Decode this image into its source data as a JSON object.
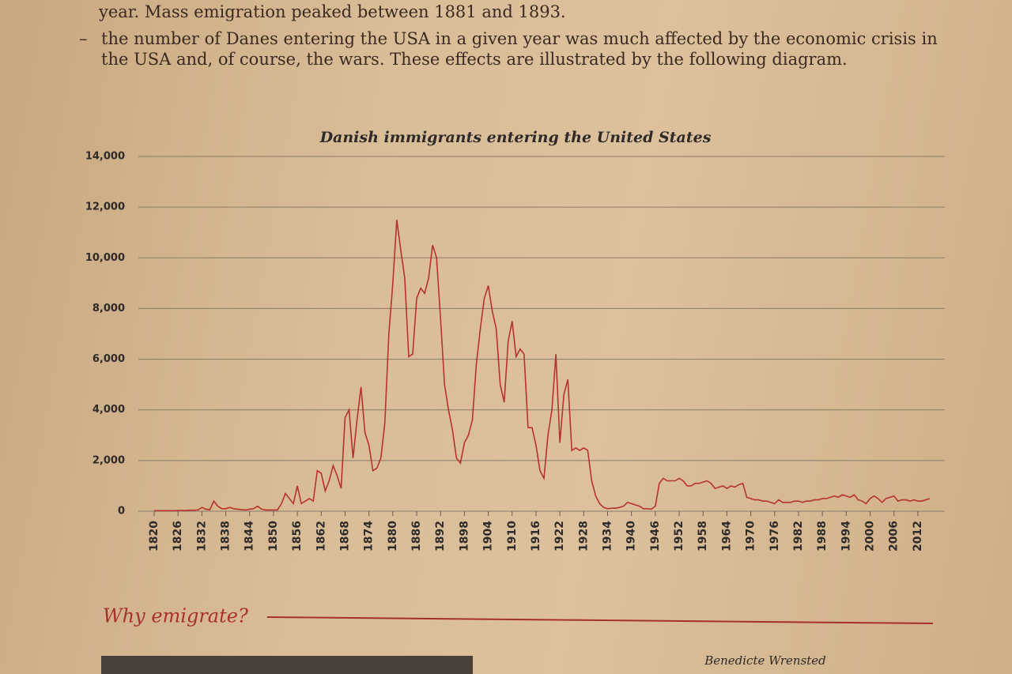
{
  "text": {
    "line1": "year. Mass emigration peaked between 1881 and 1893.",
    "bullet_marker": "–",
    "bullet": "the number of Danes entering the USA in a given year was much affected by the economic crisis in the USA and, of course, the wars. These effects are illustrated by the following diagram."
  },
  "chart_data": {
    "type": "line",
    "title": "Danish immigrants entering the United States",
    "color": "#b8322e",
    "grid": true,
    "x": [
      1820,
      1821,
      1822,
      1823,
      1824,
      1825,
      1826,
      1827,
      1828,
      1829,
      1830,
      1831,
      1832,
      1833,
      1834,
      1835,
      1836,
      1837,
      1838,
      1839,
      1840,
      1841,
      1842,
      1843,
      1844,
      1845,
      1846,
      1847,
      1848,
      1849,
      1850,
      1851,
      1852,
      1853,
      1854,
      1855,
      1856,
      1857,
      1858,
      1859,
      1860,
      1861,
      1862,
      1863,
      1864,
      1865,
      1866,
      1867,
      1868,
      1869,
      1870,
      1871,
      1872,
      1873,
      1874,
      1875,
      1876,
      1877,
      1878,
      1879,
      1880,
      1881,
      1882,
      1883,
      1884,
      1885,
      1886,
      1887,
      1888,
      1889,
      1890,
      1891,
      1892,
      1893,
      1894,
      1895,
      1896,
      1897,
      1898,
      1899,
      1900,
      1901,
      1902,
      1903,
      1904,
      1905,
      1906,
      1907,
      1908,
      1909,
      1910,
      1911,
      1912,
      1913,
      1914,
      1915,
      1916,
      1917,
      1918,
      1919,
      1920,
      1921,
      1922,
      1923,
      1924,
      1925,
      1926,
      1927,
      1928,
      1929,
      1930,
      1931,
      1932,
      1933,
      1934,
      1935,
      1936,
      1937,
      1938,
      1939,
      1940,
      1941,
      1942,
      1943,
      1944,
      1945,
      1946,
      1947,
      1948,
      1949,
      1950,
      1951,
      1952,
      1953,
      1954,
      1955,
      1956,
      1957,
      1958,
      1959,
      1960,
      1961,
      1962,
      1963,
      1964,
      1965,
      1966,
      1967,
      1968,
      1969,
      1970,
      1971,
      1972,
      1973,
      1974,
      1975,
      1976,
      1977,
      1978,
      1979,
      1980,
      1981,
      1982,
      1983,
      1984,
      1985,
      1986,
      1987,
      1988,
      1989,
      1990,
      1991,
      1992,
      1993,
      1994,
      1995,
      1996,
      1997,
      1998,
      1999,
      2000,
      2001,
      2002,
      2003,
      2004,
      2005,
      2006,
      2007,
      2008,
      2009,
      2010,
      2011,
      2012,
      2013,
      2014,
      2015
    ],
    "values": [
      20,
      20,
      20,
      20,
      20,
      20,
      30,
      30,
      30,
      40,
      40,
      50,
      150,
      80,
      60,
      400,
      200,
      100,
      100,
      150,
      100,
      80,
      60,
      50,
      80,
      100,
      200,
      80,
      50,
      50,
      50,
      50,
      300,
      700,
      500,
      300,
      1000,
      300,
      400,
      500,
      400,
      1600,
      1500,
      800,
      1200,
      1800,
      1400,
      900,
      3700,
      4000,
      2100,
      3600,
      4900,
      3100,
      2600,
      1600,
      1700,
      2100,
      3500,
      7000,
      9000,
      11500,
      10300,
      9200,
      6100,
      6200,
      8400,
      8800,
      8600,
      9200,
      10500,
      10000,
      7600,
      5000,
      4000,
      3200,
      2100,
      1900,
      2700,
      3000,
      3600,
      5800,
      7200,
      8400,
      8900,
      7900,
      7200,
      5000,
      4300,
      6700,
      7500,
      6100,
      6400,
      6200,
      3300,
      3300,
      2600,
      1600,
      1300,
      3000,
      4000,
      6200,
      2700,
      4600,
      5200,
      2400,
      2500,
      2400,
      2500,
      2400,
      1200,
      600,
      300,
      150,
      100,
      120,
      120,
      150,
      200,
      350,
      300,
      250,
      200,
      100,
      100,
      80,
      200,
      1100,
      1300,
      1200,
      1200,
      1200,
      1300,
      1200,
      1000,
      1000,
      1100,
      1100,
      1150,
      1200,
      1100,
      900,
      950,
      1000,
      900,
      1000,
      950,
      1050,
      1100,
      550,
      500,
      450,
      450,
      400,
      400,
      350,
      300,
      450,
      350,
      350,
      350,
      400,
      400,
      350,
      400,
      400,
      450,
      450,
      500,
      500,
      550,
      600,
      550,
      650,
      600,
      550,
      650,
      450,
      400,
      300,
      500,
      600,
      500,
      350,
      500,
      550,
      600,
      400,
      450,
      450,
      400,
      450,
      400,
      400,
      450,
      500
    ],
    "xlim": [
      1820,
      2015
    ],
    "xticks": [
      1820,
      1826,
      1832,
      1838,
      1844,
      1850,
      1856,
      1862,
      1868,
      1874,
      1880,
      1886,
      1892,
      1898,
      1904,
      1910,
      1916,
      1922,
      1928,
      1934,
      1940,
      1946,
      1952,
      1958,
      1964,
      1970,
      1976,
      1982,
      1988,
      1994,
      2000,
      2006,
      2012
    ],
    "ylim": [
      0,
      14000
    ],
    "yticks": [
      0,
      {
        "value": 2000,
        "label": "2,000"
      },
      {
        "value": 4000,
        "label": "4,000"
      },
      {
        "value": 6000,
        "label": "6,000"
      },
      {
        "value": 8000,
        "label": "8,000"
      },
      {
        "value": 10000,
        "label": "10,000"
      },
      {
        "value": 12000,
        "label": "12,000"
      },
      {
        "value": 14000,
        "label": "14,000"
      }
    ]
  },
  "section_heading": "Why emigrate?",
  "caption": "Benedicte Wrensted"
}
